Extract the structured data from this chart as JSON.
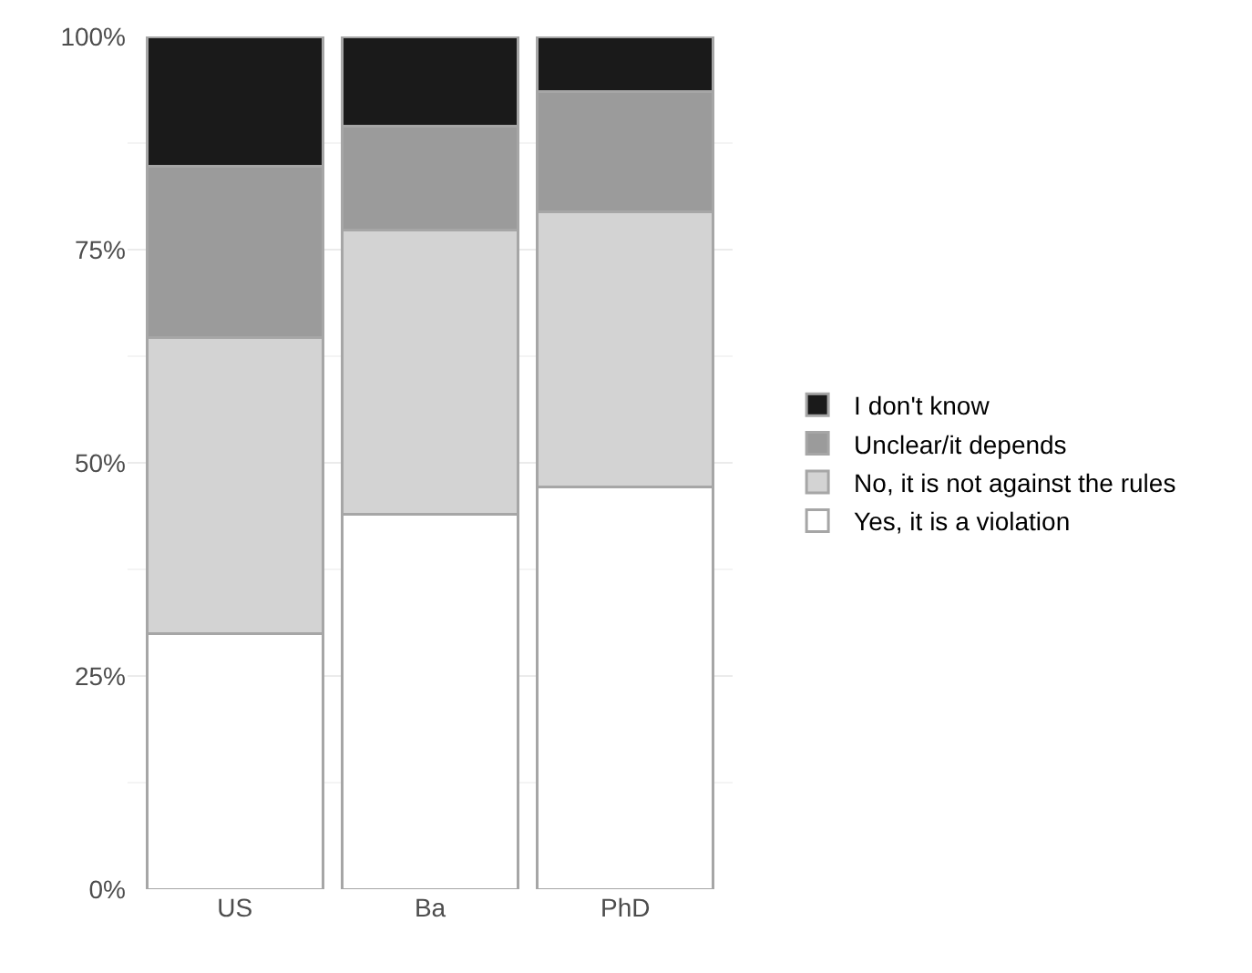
{
  "chart_data": {
    "type": "bar",
    "stacked": true,
    "categories": [
      "US",
      "Ba",
      "PhD"
    ],
    "series": [
      {
        "name": "Yes, it is a violation",
        "color": "#ffffff",
        "values": [
          30.0,
          44.0,
          47.2
        ]
      },
      {
        "name": "No, it is not against the rules",
        "color": "#d3d3d3",
        "values": [
          34.7,
          33.3,
          32.2
        ]
      },
      {
        "name": "Unclear/it depends",
        "color": "#9b9b9b",
        "values": [
          20.1,
          12.2,
          14.1
        ]
      },
      {
        "name": "I don't know",
        "color": "#1a1a1a",
        "values": [
          15.2,
          10.5,
          6.5
        ]
      }
    ],
    "ylim": [
      0,
      100
    ],
    "yticks": [
      {
        "value": 0,
        "label": "0%"
      },
      {
        "value": 25,
        "label": "25%"
      },
      {
        "value": 50,
        "label": "50%"
      },
      {
        "value": 75,
        "label": "75%"
      },
      {
        "value": 100,
        "label": "100%"
      }
    ],
    "grid": true,
    "legend": "right"
  }
}
